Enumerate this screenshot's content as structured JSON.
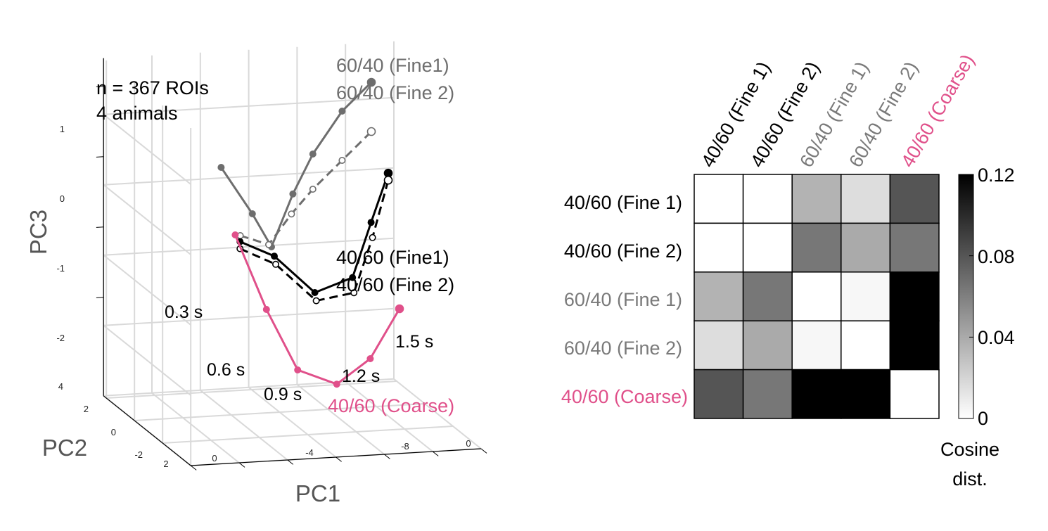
{
  "chart_data": [
    {
      "type": "line",
      "title": "",
      "xlabel": "PC1",
      "ylabel": "PC2",
      "zlabel": "PC3",
      "annotation": [
        "n = 367 ROIs",
        "4 animals"
      ],
      "x_ticks": [
        "2",
        "0",
        "-4",
        "-8",
        "0"
      ],
      "y_ticks": [
        "4",
        "2",
        "0",
        "-2"
      ],
      "z_ticks": [
        "1",
        "0",
        "-1",
        "-2"
      ],
      "grid": true,
      "colors": {
        "black": "#000000",
        "gray": "#6e6e6e",
        "pink": "#e0508a",
        "grid": "#d9d9d9"
      },
      "legend": [
        {
          "label": "60/40 (Fine1)",
          "color": "#6e6e6e"
        },
        {
          "label": "60/40 (Fine 2)",
          "color": "#6e6e6e"
        },
        {
          "label": "40/60 (Fine1)",
          "color": "#000000"
        },
        {
          "label": "40/60 (Fine 2)",
          "color": "#000000"
        },
        {
          "label": "40/60 (Coarse)",
          "color": "#e0508a"
        }
      ],
      "time_labels": [
        "0.3 s",
        "0.6 s",
        "0.9 s",
        "1.2 s",
        "1.5 s"
      ],
      "series": [
        {
          "name": "60/40 (Fine1)",
          "color": "#6e6e6e",
          "style": "solid",
          "marker": "filled",
          "points": [
            [
              -1.0,
              1.0,
              0.3
            ],
            [
              -2.0,
              0.5,
              -0.3
            ],
            [
              -2.5,
              0.0,
              -0.7
            ],
            [
              -3.5,
              0.2,
              0.0
            ],
            [
              -4.5,
              0.5,
              0.5
            ],
            [
              -6.0,
              1.0,
              1.0
            ],
            [
              -7.5,
              1.5,
              1.3
            ]
          ]
        },
        {
          "name": "60/40 (Fine 2)",
          "color": "#6e6e6e",
          "style": "dashed",
          "marker": "open",
          "points": [
            [
              -1.5,
              0.5,
              -0.6
            ],
            [
              -2.5,
              0.2,
              -0.7
            ],
            [
              -3.5,
              0.3,
              -0.3
            ],
            [
              -4.5,
              0.5,
              0.0
            ],
            [
              -6.0,
              1.0,
              0.3
            ],
            [
              -7.5,
              1.5,
              0.6
            ]
          ]
        },
        {
          "name": "40/60 (Fine1)",
          "color": "#000000",
          "style": "solid",
          "marker": "filled",
          "points": [
            [
              -1.2,
              0.0,
              -0.6
            ],
            [
              -2.5,
              -0.2,
              -0.8
            ],
            [
              -4.0,
              -0.5,
              -1.3
            ],
            [
              -5.5,
              -0.6,
              -1.1
            ],
            [
              -6.5,
              -0.2,
              -0.4
            ],
            [
              -7.5,
              0.3,
              0.2
            ]
          ]
        },
        {
          "name": "40/60 (Fine 2)",
          "color": "#000000",
          "style": "dashed",
          "marker": "open",
          "points": [
            [
              -1.2,
              0.0,
              -0.7
            ],
            [
              -2.5,
              -0.3,
              -0.9
            ],
            [
              -4.0,
              -0.6,
              -1.4
            ],
            [
              -5.5,
              -0.7,
              -1.3
            ],
            [
              -6.5,
              -0.3,
              -0.6
            ],
            [
              -7.5,
              0.3,
              0.1
            ]
          ]
        },
        {
          "name": "40/60 (Coarse)",
          "color": "#e0508a",
          "style": "solid",
          "marker": "filled",
          "points": [
            [
              -1.0,
              0.0,
              -0.5
            ],
            [
              -2.0,
              -0.5,
              -1.5
            ],
            [
              -3.0,
              -1.0,
              -2.3
            ],
            [
              -4.5,
              -1.2,
              -2.5
            ],
            [
              -6.0,
              -1.0,
              -2.2
            ],
            [
              -7.5,
              -0.5,
              -1.6
            ]
          ]
        }
      ]
    },
    {
      "type": "heatmap",
      "title": "",
      "labels": [
        "40/60 (Fine 1)",
        "40/60 (Fine 2)",
        "60/40 (Fine 1)",
        "60/40 (Fine 2)",
        "40/60 (Coarse)"
      ],
      "label_colors": [
        "#000000",
        "#000000",
        "#7a7a7a",
        "#7a7a7a",
        "#e0508a"
      ],
      "values": [
        [
          0.0,
          0.0,
          0.036,
          0.016,
          0.08
        ],
        [
          0.0,
          0.0,
          0.064,
          0.04,
          0.064
        ],
        [
          0.036,
          0.064,
          0.0,
          0.004,
          0.12
        ],
        [
          0.016,
          0.04,
          0.004,
          0.0,
          0.12
        ],
        [
          0.08,
          0.064,
          0.12,
          0.12,
          0.0
        ]
      ],
      "colorbar": {
        "min": 0,
        "max": 0.12,
        "ticks": [
          "0.12",
          "0.08",
          "0.04",
          "0"
        ],
        "tick_values": [
          0.12,
          0.08,
          0.04,
          0
        ],
        "label_line1": "Cosine",
        "label_line2": "dist."
      }
    }
  ]
}
